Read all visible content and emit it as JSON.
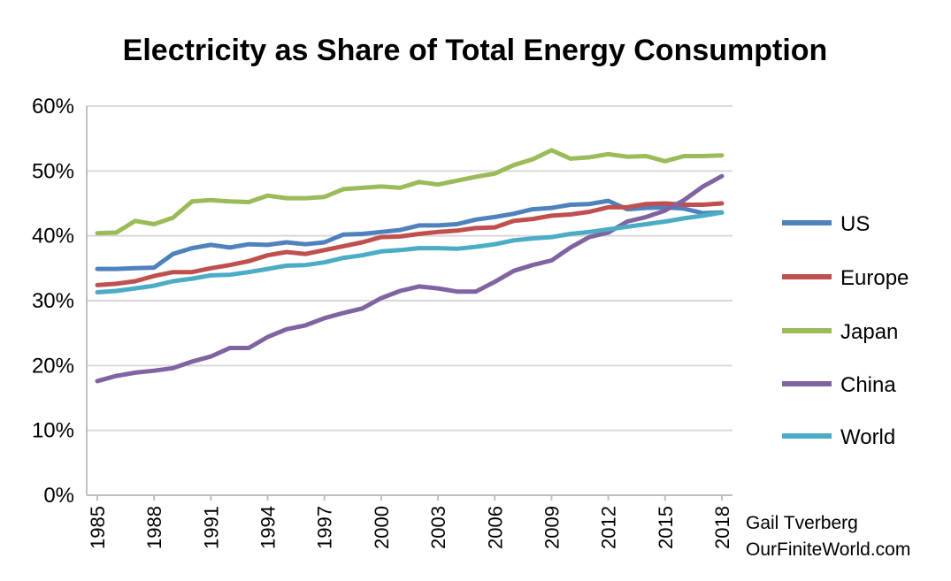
{
  "chart_data": {
    "type": "line",
    "title": "Electricity as Share of Total Energy Consumption",
    "xlabel": "",
    "ylabel": "",
    "ylim": [
      0,
      60
    ],
    "y_ticks": [
      "0%",
      "10%",
      "20%",
      "30%",
      "40%",
      "50%",
      "60%"
    ],
    "x_ticks": [
      "1985",
      "1988",
      "1991",
      "1994",
      "1997",
      "2000",
      "2003",
      "2006",
      "2009",
      "2012",
      "2015",
      "2018"
    ],
    "x": [
      1985,
      1986,
      1987,
      1988,
      1989,
      1990,
      1991,
      1992,
      1993,
      1994,
      1995,
      1996,
      1997,
      1998,
      1999,
      2000,
      2001,
      2002,
      2003,
      2004,
      2005,
      2006,
      2007,
      2008,
      2009,
      2010,
      2011,
      2012,
      2013,
      2014,
      2015,
      2016,
      2017,
      2018
    ],
    "grid": true,
    "legend_position": "right",
    "series": [
      {
        "name": "US",
        "color": "#4f81bd",
        "values": [
          34.9,
          34.9,
          35.0,
          35.1,
          37.2,
          38.1,
          38.6,
          38.2,
          38.7,
          38.6,
          39.0,
          38.7,
          39.0,
          40.2,
          40.3,
          40.6,
          40.9,
          41.6,
          41.6,
          41.8,
          42.5,
          42.9,
          43.4,
          44.1,
          44.3,
          44.8,
          44.9,
          45.4,
          44.1,
          44.3,
          44.4,
          44.2,
          43.5,
          43.6
        ]
      },
      {
        "name": "Europe",
        "color": "#c0504d",
        "values": [
          32.4,
          32.6,
          33.0,
          33.8,
          34.4,
          34.4,
          35.0,
          35.5,
          36.1,
          37.0,
          37.5,
          37.2,
          37.8,
          38.4,
          39.0,
          39.8,
          39.9,
          40.3,
          40.6,
          40.8,
          41.2,
          41.3,
          42.3,
          42.6,
          43.1,
          43.3,
          43.7,
          44.4,
          44.4,
          44.9,
          45.0,
          44.8,
          44.8,
          45.0
        ]
      },
      {
        "name": "Japan",
        "color": "#9bbb59",
        "values": [
          40.4,
          40.5,
          42.3,
          41.8,
          42.8,
          45.3,
          45.5,
          45.3,
          45.2,
          46.2,
          45.8,
          45.8,
          46.0,
          47.2,
          47.4,
          47.6,
          47.4,
          48.3,
          47.9,
          48.5,
          49.1,
          49.6,
          50.9,
          51.8,
          53.2,
          51.9,
          52.1,
          52.6,
          52.2,
          52.3,
          51.5,
          52.3,
          52.3,
          52.4
        ]
      },
      {
        "name": "China",
        "color": "#8064a2",
        "values": [
          17.6,
          18.4,
          18.9,
          19.2,
          19.6,
          20.6,
          21.4,
          22.7,
          22.7,
          24.4,
          25.6,
          26.2,
          27.3,
          28.1,
          28.8,
          30.4,
          31.5,
          32.2,
          31.9,
          31.4,
          31.4,
          32.9,
          34.6,
          35.5,
          36.2,
          38.2,
          39.8,
          40.5,
          42.2,
          42.9,
          43.9,
          45.5,
          47.6,
          49.2
        ]
      },
      {
        "name": "World",
        "color": "#4bacc6",
        "values": [
          31.3,
          31.5,
          31.9,
          32.3,
          33.0,
          33.4,
          33.9,
          34.0,
          34.4,
          34.9,
          35.4,
          35.5,
          35.9,
          36.6,
          37.0,
          37.6,
          37.8,
          38.1,
          38.1,
          38.0,
          38.3,
          38.7,
          39.3,
          39.6,
          39.8,
          40.3,
          40.6,
          41.0,
          41.4,
          41.8,
          42.2,
          42.7,
          43.1,
          43.6
        ]
      }
    ],
    "credit_lines": [
      "Gail Tverberg",
      "OurFiniteWorld.com"
    ]
  }
}
